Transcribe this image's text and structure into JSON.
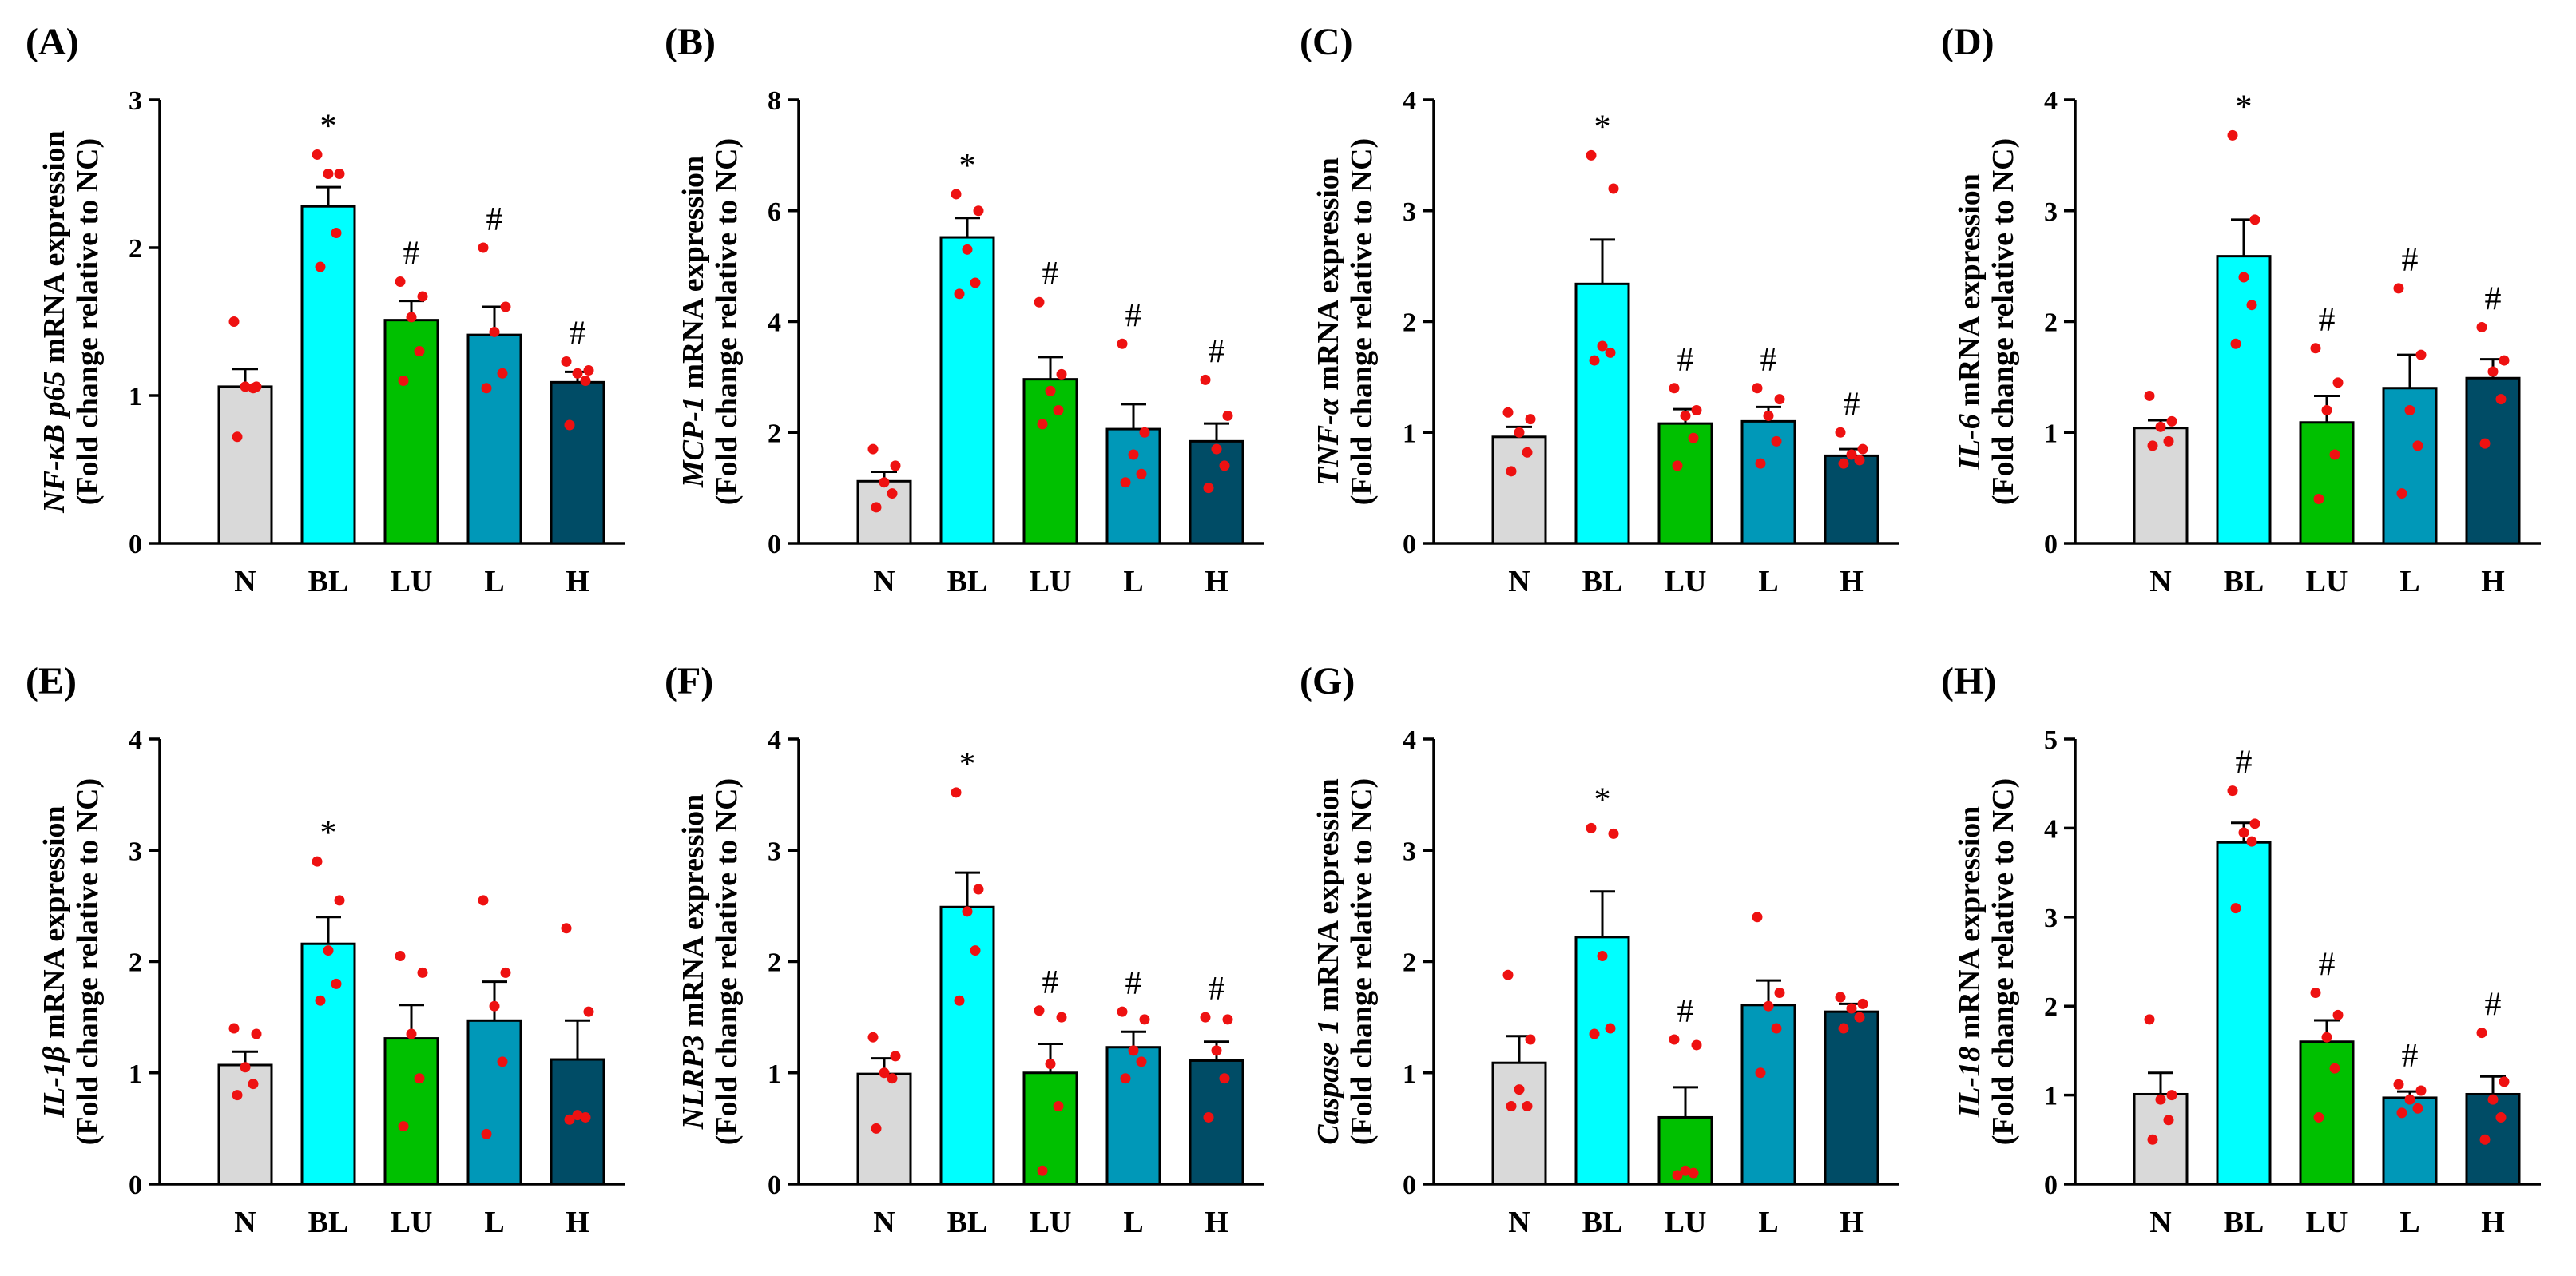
{
  "chart_data": [
    {
      "type": "bar",
      "panel": "(A)",
      "gene": "NF-κB p65",
      "ylabel_gene": "NF-κB p65",
      "ylabel_rest": " mRNA expression",
      "ylabel_sub": "(Fold change relative to NC)",
      "categories": [
        "N",
        "BL",
        "LU",
        "L",
        "H"
      ],
      "ylim": [
        0,
        3
      ],
      "yticks": [
        "0",
        "1",
        "2",
        "3"
      ],
      "tick_step": 1,
      "values": [
        1.06,
        2.28,
        1.51,
        1.41,
        1.09
      ],
      "sem": [
        0.12,
        0.13,
        0.13,
        0.19,
        0.07
      ],
      "points": [
        [
          1.5,
          1.06,
          1.06,
          1.05,
          0.72
        ],
        [
          2.63,
          2.5,
          2.5,
          2.1,
          1.87
        ],
        [
          1.77,
          1.67,
          1.53,
          1.3,
          1.1
        ],
        [
          2.0,
          1.6,
          1.43,
          1.15,
          1.05
        ],
        [
          1.23,
          1.17,
          1.15,
          1.1,
          0.8
        ]
      ],
      "annotations": [
        "",
        "*",
        "#",
        "#",
        "#"
      ]
    },
    {
      "type": "bar",
      "panel": "(B)",
      "gene": "MCP-1",
      "ylabel_gene": "MCP-1",
      "ylabel_rest": " mRNA expression",
      "ylabel_sub": "(Fold change relative to NC)",
      "categories": [
        "N",
        "BL",
        "LU",
        "L",
        "H"
      ],
      "ylim": [
        0,
        8
      ],
      "yticks": [
        "0",
        "2",
        "4",
        "6",
        "8"
      ],
      "tick_step": 2,
      "values": [
        1.12,
        5.52,
        2.96,
        2.06,
        1.84
      ],
      "sem": [
        0.17,
        0.35,
        0.4,
        0.45,
        0.32
      ],
      "points": [
        [
          1.7,
          1.4,
          1.1,
          0.9,
          0.65
        ],
        [
          6.3,
          6.0,
          5.3,
          4.7,
          4.5
        ],
        [
          4.35,
          3.05,
          2.75,
          2.4,
          2.15
        ],
        [
          3.6,
          2.0,
          1.6,
          1.25,
          1.1
        ],
        [
          2.95,
          2.3,
          1.7,
          1.4,
          1.0
        ]
      ],
      "annotations": [
        "",
        "*",
        "#",
        "#",
        "#"
      ]
    },
    {
      "type": "bar",
      "panel": "(C)",
      "gene": "TNF-α",
      "ylabel_gene": "TNF-α",
      "ylabel_rest": " mRNA expression",
      "ylabel_sub": "(Fold change relative to NC)",
      "categories": [
        "N",
        "BL",
        "LU",
        "L",
        "H"
      ],
      "ylim": [
        0,
        4
      ],
      "yticks": [
        "0",
        "1",
        "2",
        "3",
        "4"
      ],
      "tick_step": 1,
      "values": [
        0.96,
        2.34,
        1.08,
        1.1,
        0.79
      ],
      "sem": [
        0.09,
        0.4,
        0.13,
        0.13,
        0.06
      ],
      "points": [
        [
          1.18,
          1.12,
          1.0,
          0.82,
          0.65
        ],
        [
          3.5,
          3.2,
          1.78,
          1.72,
          1.65
        ],
        [
          1.4,
          1.2,
          1.15,
          0.95,
          0.7
        ],
        [
          1.4,
          1.3,
          1.15,
          0.92,
          0.72
        ],
        [
          1.0,
          0.85,
          0.8,
          0.75,
          0.72
        ]
      ],
      "annotations": [
        "",
        "*",
        "#",
        "#",
        "#"
      ]
    },
    {
      "type": "bar",
      "panel": "(D)",
      "gene": "IL-6",
      "ylabel_gene": "IL-6",
      "ylabel_rest": " mRNA expression",
      "ylabel_sub": "(Fold change relative to NC)",
      "categories": [
        "N",
        "BL",
        "LU",
        "L",
        "H"
      ],
      "ylim": [
        0,
        4
      ],
      "yticks": [
        "0",
        "1",
        "2",
        "3",
        "4"
      ],
      "tick_step": 1,
      "values": [
        1.04,
        2.59,
        1.09,
        1.4,
        1.49
      ],
      "sem": [
        0.07,
        0.33,
        0.24,
        0.3,
        0.17
      ],
      "points": [
        [
          1.33,
          1.1,
          1.05,
          0.92,
          0.88
        ],
        [
          3.68,
          2.92,
          2.4,
          2.15,
          1.8
        ],
        [
          1.76,
          1.45,
          1.2,
          0.8,
          0.4
        ],
        [
          2.3,
          1.7,
          1.2,
          0.88,
          0.45
        ],
        [
          1.95,
          1.65,
          1.55,
          1.3,
          0.9
        ]
      ],
      "annotations": [
        "",
        "*",
        "#",
        "#",
        "#"
      ]
    },
    {
      "type": "bar",
      "panel": "(E)",
      "gene": "IL-1β",
      "ylabel_gene": "IL-1β",
      "ylabel_rest": " mRNA expression",
      "ylabel_sub": "(Fold change relative to NC)",
      "categories": [
        "N",
        "BL",
        "LU",
        "L",
        "H"
      ],
      "ylim": [
        0,
        4
      ],
      "yticks": [
        "0",
        "1",
        "2",
        "3",
        "4"
      ],
      "tick_step": 1,
      "values": [
        1.07,
        2.16,
        1.31,
        1.47,
        1.12
      ],
      "sem": [
        0.12,
        0.24,
        0.3,
        0.35,
        0.35
      ],
      "points": [
        [
          1.4,
          1.35,
          1.05,
          0.9,
          0.8
        ],
        [
          2.9,
          2.55,
          2.1,
          1.8,
          1.65
        ],
        [
          2.05,
          1.9,
          1.35,
          0.95,
          0.52
        ],
        [
          2.55,
          1.9,
          1.6,
          1.1,
          0.45
        ],
        [
          2.3,
          1.55,
          0.62,
          0.6,
          0.58
        ]
      ],
      "annotations": [
        "",
        "*",
        "",
        "",
        ""
      ]
    },
    {
      "type": "bar",
      "panel": "(F)",
      "gene": "NLRP3",
      "ylabel_gene": "NLRP3",
      "ylabel_rest": " mRNA expression",
      "ylabel_sub": "(Fold change relative to NC)",
      "categories": [
        "N",
        "BL",
        "LU",
        "L",
        "H"
      ],
      "ylim": [
        0,
        4
      ],
      "yticks": [
        "0",
        "1",
        "2",
        "3",
        "4"
      ],
      "tick_step": 1,
      "values": [
        0.99,
        2.49,
        1.0,
        1.23,
        1.11
      ],
      "sem": [
        0.14,
        0.31,
        0.26,
        0.14,
        0.17
      ],
      "points": [
        [
          1.32,
          1.15,
          1.0,
          0.95,
          0.5
        ],
        [
          3.52,
          2.65,
          2.45,
          2.1,
          1.65
        ],
        [
          1.56,
          1.5,
          1.08,
          0.7,
          0.12
        ],
        [
          1.55,
          1.48,
          1.2,
          1.1,
          0.95
        ],
        [
          1.5,
          1.48,
          1.2,
          0.95,
          0.6
        ]
      ],
      "annotations": [
        "",
        "*",
        "#",
        "#",
        "#"
      ]
    },
    {
      "type": "bar",
      "panel": "(G)",
      "gene": "Caspase 1",
      "ylabel_gene": "Caspase 1",
      "ylabel_rest": " mRNA expression",
      "ylabel_sub": "(Fold change relative to NC)",
      "categories": [
        "N",
        "BL",
        "LU",
        "L",
        "H"
      ],
      "ylim": [
        0,
        4
      ],
      "yticks": [
        "0",
        "1",
        "2",
        "3",
        "4"
      ],
      "tick_step": 1,
      "values": [
        1.09,
        2.22,
        0.6,
        1.61,
        1.55
      ],
      "sem": [
        0.24,
        0.41,
        0.27,
        0.22,
        0.07
      ],
      "points": [
        [
          1.88,
          1.3,
          0.85,
          0.7,
          0.7
        ],
        [
          3.2,
          3.15,
          2.05,
          1.4,
          1.35
        ],
        [
          1.3,
          1.25,
          0.12,
          0.1,
          0.08
        ],
        [
          2.4,
          1.72,
          1.6,
          1.4,
          1.0
        ],
        [
          1.68,
          1.62,
          1.58,
          1.5,
          1.4
        ]
      ],
      "annotations": [
        "",
        "*",
        "#",
        "",
        ""
      ]
    },
    {
      "type": "bar",
      "panel": "(H)",
      "gene": "IL-18",
      "ylabel_gene": "IL-18",
      "ylabel_rest": " mRNA expression",
      "ylabel_sub": "(Fold change relative to NC)",
      "categories": [
        "N",
        "BL",
        "LU",
        "L",
        "H"
      ],
      "ylim": [
        0,
        5
      ],
      "yticks": [
        "0",
        "1",
        "2",
        "3",
        "4",
        "5"
      ],
      "tick_step": 1,
      "values": [
        1.01,
        3.84,
        1.6,
        0.97,
        1.01
      ],
      "sem": [
        0.24,
        0.22,
        0.24,
        0.07,
        0.2
      ],
      "points": [
        [
          1.85,
          1.0,
          0.95,
          0.72,
          0.5
        ],
        [
          4.42,
          4.05,
          3.95,
          3.85,
          3.1
        ],
        [
          2.15,
          1.9,
          1.65,
          1.3,
          0.75
        ],
        [
          1.12,
          1.05,
          0.95,
          0.85,
          0.8
        ],
        [
          1.7,
          1.15,
          0.95,
          0.75,
          0.5
        ]
      ],
      "annotations": [
        "",
        "#",
        "#",
        "#",
        "#"
      ]
    }
  ],
  "colors": {
    "N": "#d9d9d9",
    "BL": "#00ffff",
    "LU": "#00c000",
    "L": "#0098b8",
    "H": "#004c66",
    "points": "#ee1111"
  }
}
